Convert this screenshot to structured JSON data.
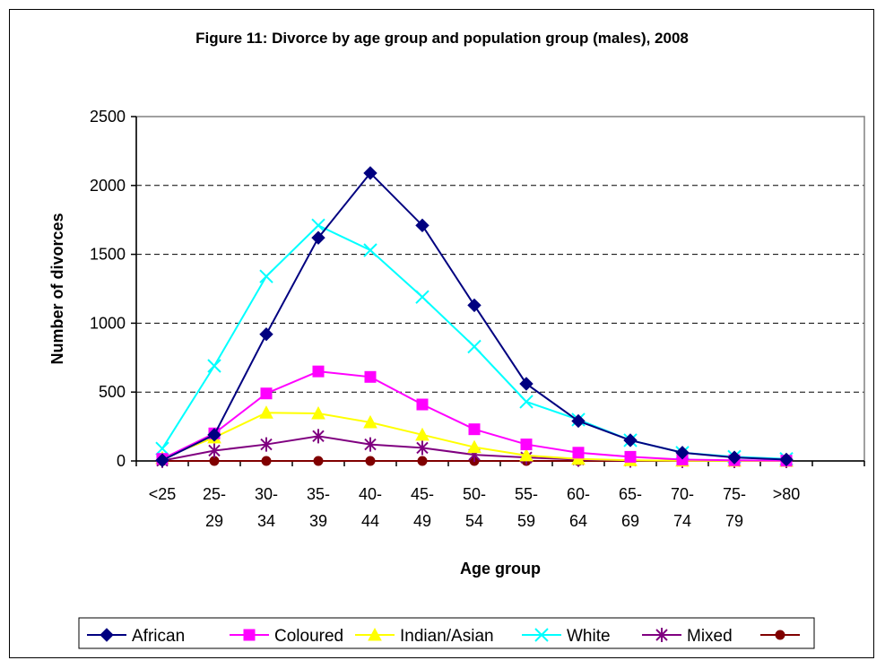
{
  "chart_data": {
    "type": "line",
    "title": "Figure 11: Divorce by age group and population group (males), 2008",
    "xlabel": "Age group",
    "ylabel": "Number of divorces",
    "ylim": [
      0,
      2500
    ],
    "yticks": [
      "0",
      "500",
      "1000",
      "1500",
      "2000",
      "2500"
    ],
    "categories": [
      [
        "<25"
      ],
      [
        "25-",
        "29"
      ],
      [
        "30-",
        "34"
      ],
      [
        "35-",
        "39"
      ],
      [
        "40-",
        "44"
      ],
      [
        "45-",
        "49"
      ],
      [
        "50-",
        "54"
      ],
      [
        "55-",
        "59"
      ],
      [
        "60-",
        "64"
      ],
      [
        "65-",
        "69"
      ],
      [
        "70-",
        "74"
      ],
      [
        "75-",
        "79"
      ],
      [
        ">80"
      ]
    ],
    "grid": "horizontal dashed",
    "legend_position": "bottom",
    "series": [
      {
        "name": "African",
        "color": "#000080",
        "marker": "diamond",
        "values": [
          5,
          190,
          920,
          1620,
          2090,
          1710,
          1130,
          560,
          290,
          150,
          60,
          25,
          10
        ]
      },
      {
        "name": "Coloured",
        "color": "#ff00ff",
        "marker": "square",
        "values": [
          15,
          200,
          490,
          650,
          610,
          410,
          230,
          120,
          60,
          30,
          10,
          5,
          2
        ]
      },
      {
        "name": "Indian/Asian",
        "color": "#ffff00",
        "marker": "triangle",
        "values": [
          20,
          170,
          350,
          345,
          280,
          190,
          100,
          40,
          15,
          5,
          2,
          1,
          0
        ]
      },
      {
        "name": "White",
        "color": "#00ffff",
        "marker": "x",
        "values": [
          90,
          690,
          1340,
          1710,
          1530,
          1190,
          830,
          430,
          300,
          150,
          60,
          30,
          15
        ]
      },
      {
        "name": "Mixed",
        "color": "#800080",
        "marker": "star",
        "values": [
          2,
          75,
          120,
          180,
          120,
          95,
          45,
          25,
          10,
          3,
          1,
          0,
          0
        ]
      },
      {
        "name": "",
        "color": "#800000",
        "marker": "circle",
        "values": [
          0,
          0,
          0,
          0,
          0,
          0,
          0,
          0,
          0,
          0,
          0,
          0,
          0
        ]
      }
    ]
  }
}
